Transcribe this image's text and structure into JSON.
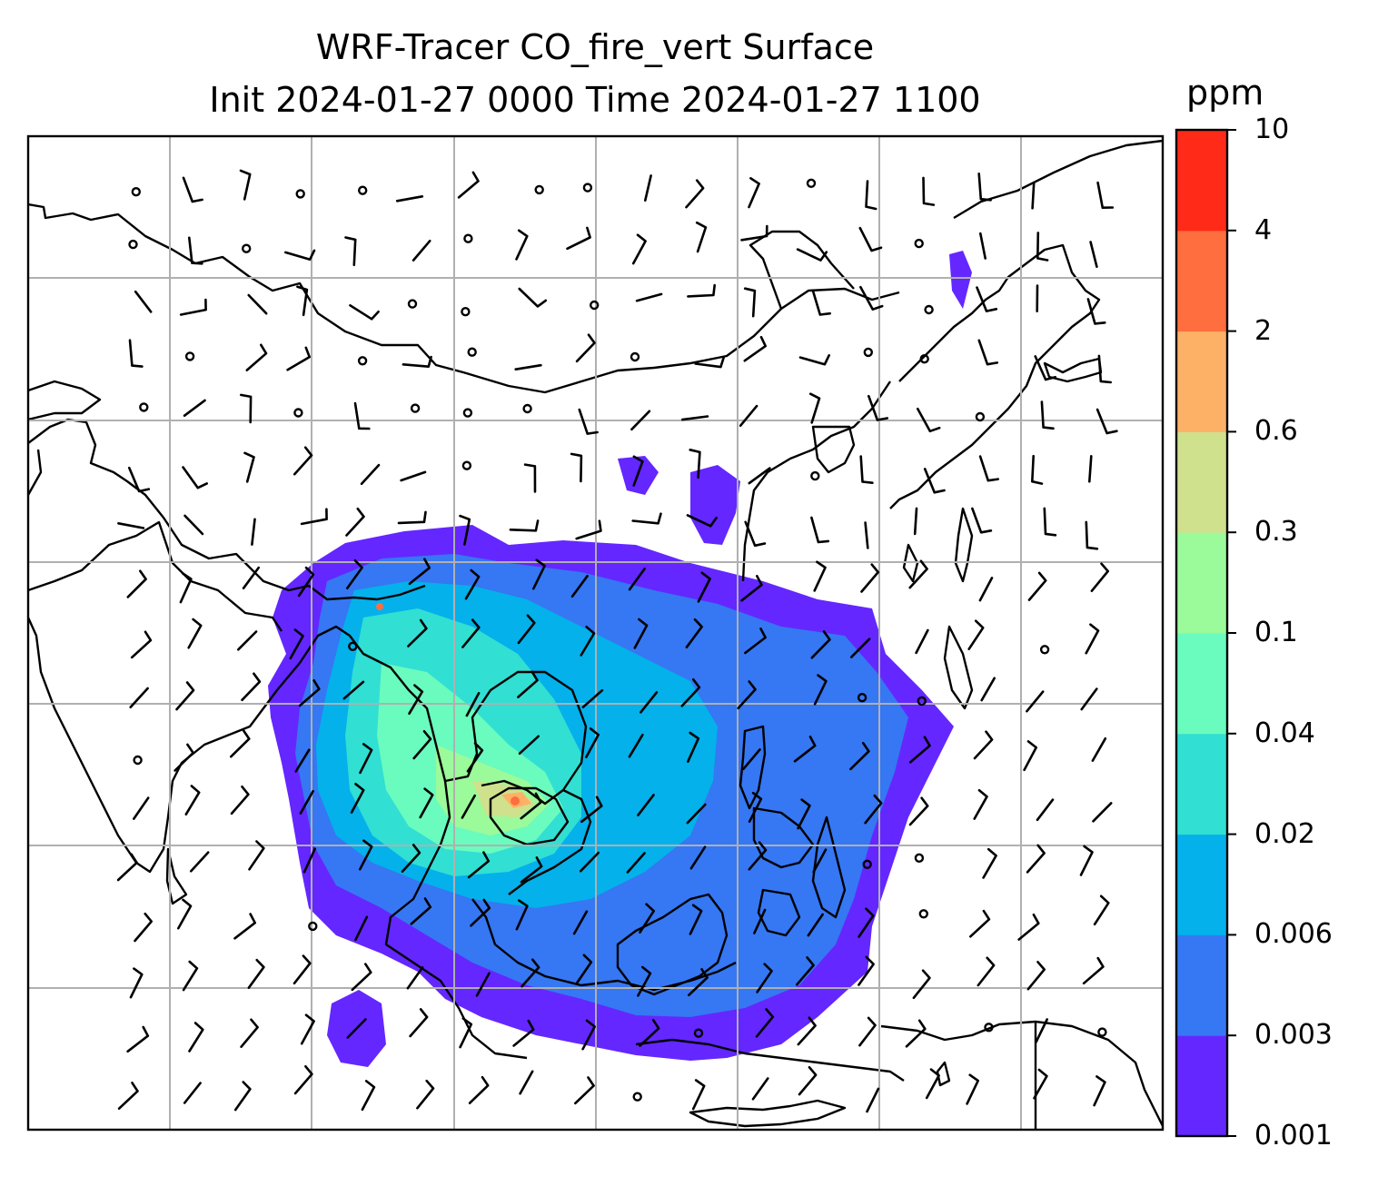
{
  "title": {
    "line1": "WRF-Tracer CO_fire_vert Surface",
    "line2": "Init 2024-01-27 0000 Time 2024-01-27 1100"
  },
  "colorbar": {
    "unit": "ppm",
    "levels": [
      "0.001",
      "0.003",
      "0.006",
      "0.02",
      "0.04",
      "0.1",
      "0.3",
      "0.6",
      "2",
      "4",
      "10"
    ],
    "colors": [
      "#6427ff",
      "#3677f3",
      "#04b1ea",
      "#31dfd3",
      "#6afbbe",
      "#9bfa9a",
      "#cfe18d",
      "#fdb167",
      "#ff6e3f",
      "#ff2a17"
    ]
  },
  "map": {
    "gridlines": true,
    "coastline_color": "#000000",
    "grid_color": "#b0b0b0",
    "wind_barbs": true
  }
}
